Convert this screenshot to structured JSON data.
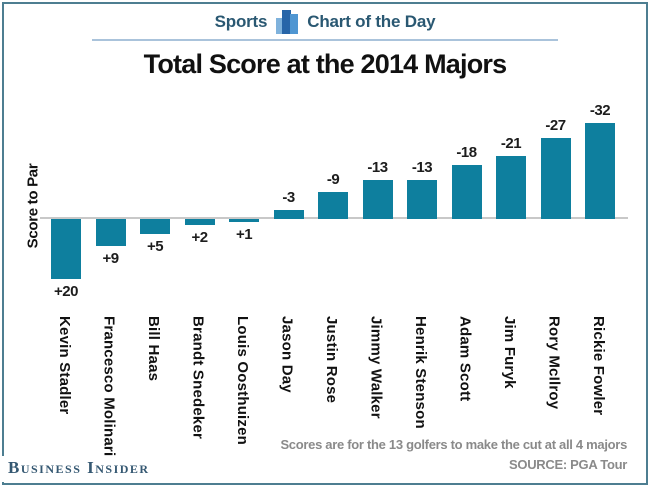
{
  "colors": {
    "frame": "#4d7e91",
    "bar": "#0e7f9e",
    "header_text": "#2a5872",
    "header_underline": "#aac3db",
    "baseline": "#c8c8c8",
    "title_text": "#111111",
    "value_label_text": "#1d1d1d",
    "category_text": "#111111",
    "note_text": "#8a8a8a",
    "logo_text": "#355872",
    "icon_light": "#7fb2dc",
    "icon_dark": "#2765a8",
    "icon_medium": "#4f96d2"
  },
  "header": {
    "section_label": "Sports",
    "series_label": "Chart of the Day",
    "icon": "bar-chart-icon"
  },
  "title": "Total Score at the 2014 Majors",
  "chart_data": {
    "type": "bar",
    "title": "Total Score at the 2014 Majors",
    "ylabel": "Score to Par",
    "xlabel": "",
    "categories": [
      "Kevin Stadler",
      "Francesco Molinari",
      "Bill Haas",
      "Brandt Snedeker",
      "Louis Oosthuizen",
      "Jason Day",
      "Justin Rose",
      "Jimmy Walker",
      "Henrik Stenson",
      "Adam Scott",
      "Jim Furyk",
      "Rory McIlroy",
      "Rickie Fowler"
    ],
    "values": [
      20,
      9,
      5,
      2,
      1,
      -3,
      -9,
      -13,
      -13,
      -18,
      -21,
      -27,
      -32
    ],
    "value_labels": [
      "+20",
      "+9",
      "+5",
      "+2",
      "+1",
      "-3",
      "-9",
      "-13",
      "-13",
      "-18",
      "-21",
      "-27",
      "-32"
    ],
    "axis_orientation": "inverted: under-par (negative) scores drawn as upward bars, over-par (positive) scores drawn downward",
    "ylim": [
      -35,
      22
    ],
    "grid": false,
    "legend": false
  },
  "footnote": {
    "note": "Scores are for the 13 golfers to make the cut at all 4 majors",
    "source": "SOURCE: PGA Tour"
  },
  "branding": {
    "wordmark": "Business Insider"
  }
}
